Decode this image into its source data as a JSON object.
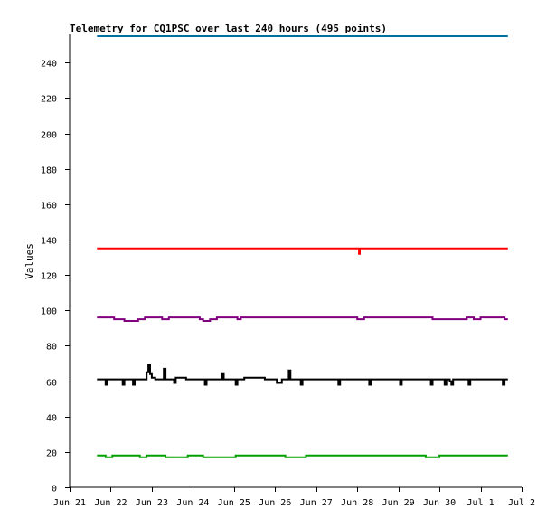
{
  "chart_data": {
    "type": "line",
    "title": "Telemetry for CQ1PSC over last 240 hours (495 points)",
    "xlabel": "",
    "ylabel": "Values",
    "ylim": [
      0,
      256
    ],
    "xlim": [
      "Jun 21",
      "Jul 2"
    ],
    "y_ticks": [
      0,
      20,
      40,
      60,
      80,
      100,
      120,
      140,
      160,
      180,
      200,
      220,
      240
    ],
    "x_ticks": [
      "Jun 21",
      "Jun 22",
      "Jun 23",
      "Jun 24",
      "Jun 25",
      "Jun 26",
      "Jun 27",
      "Jun 28",
      "Jun 29",
      "Jun 30",
      "Jul 1",
      "Jul 2"
    ],
    "legend": "none",
    "grid": false,
    "series": [
      {
        "color": "#0070a0",
        "points": [
          [
            "2024-06-21T16:00",
            255
          ],
          [
            "2024-07-01T16:00",
            255
          ]
        ]
      },
      {
        "color": "#ff0000",
        "points": [
          [
            "2024-06-21T16:00",
            135
          ],
          [
            "2024-06-28T00:30",
            135
          ],
          [
            "2024-06-28T01:00",
            132
          ],
          [
            "2024-06-28T01:30",
            135
          ],
          [
            "2024-07-01T16:00",
            135
          ]
        ]
      },
      {
        "color": "#800080",
        "points": [
          [
            "2024-06-21T16:00",
            96
          ],
          [
            "2024-06-22T00:00",
            96
          ],
          [
            "2024-06-22T02:00",
            95
          ],
          [
            "2024-06-22T06:00",
            95
          ],
          [
            "2024-06-22T08:00",
            94
          ],
          [
            "2024-06-22T16:00",
            95
          ],
          [
            "2024-06-22T20:00",
            96
          ],
          [
            "2024-06-23T00:00",
            96
          ],
          [
            "2024-06-23T06:00",
            95
          ],
          [
            "2024-06-23T10:00",
            96
          ],
          [
            "2024-06-24T00:00",
            96
          ],
          [
            "2024-06-24T04:00",
            95
          ],
          [
            "2024-06-24T06:00",
            94
          ],
          [
            "2024-06-24T10:00",
            95
          ],
          [
            "2024-06-24T14:00",
            96
          ],
          [
            "2024-06-25T00:00",
            96
          ],
          [
            "2024-06-25T02:00",
            95
          ],
          [
            "2024-06-25T04:00",
            96
          ],
          [
            "2024-06-27T00:00",
            96
          ],
          [
            "2024-06-28T00:00",
            95
          ],
          [
            "2024-06-28T04:00",
            96
          ],
          [
            "2024-06-29T00:00",
            96
          ],
          [
            "2024-06-29T18:00",
            96
          ],
          [
            "2024-06-29T20:00",
            95
          ],
          [
            "2024-06-30T12:00",
            95
          ],
          [
            "2024-06-30T16:00",
            96
          ],
          [
            "2024-06-30T20:00",
            95
          ],
          [
            "2024-07-01T00:00",
            96
          ],
          [
            "2024-07-01T12:00",
            96
          ],
          [
            "2024-07-01T14:00",
            95
          ],
          [
            "2024-07-01T16:00",
            95
          ]
        ]
      },
      {
        "color": "#000000",
        "points": [
          [
            "2024-06-21T16:00",
            61
          ],
          [
            "2024-06-21T20:00",
            61
          ],
          [
            "2024-06-21T21:00",
            58
          ],
          [
            "2024-06-21T22:00",
            61
          ],
          [
            "2024-06-22T06:00",
            61
          ],
          [
            "2024-06-22T07:00",
            58
          ],
          [
            "2024-06-22T08:00",
            61
          ],
          [
            "2024-06-22T12:00",
            61
          ],
          [
            "2024-06-22T13:00",
            58
          ],
          [
            "2024-06-22T14:00",
            61
          ],
          [
            "2024-06-22T20:00",
            61
          ],
          [
            "2024-06-22T21:00",
            65
          ],
          [
            "2024-06-22T22:00",
            69
          ],
          [
            "2024-06-22T23:00",
            64
          ],
          [
            "2024-06-23T00:00",
            62
          ],
          [
            "2024-06-23T02:00",
            61
          ],
          [
            "2024-06-23T06:00",
            61
          ],
          [
            "2024-06-23T07:00",
            67
          ],
          [
            "2024-06-23T08:00",
            61
          ],
          [
            "2024-06-23T12:00",
            61
          ],
          [
            "2024-06-23T13:00",
            59
          ],
          [
            "2024-06-23T14:00",
            62
          ],
          [
            "2024-06-23T18:00",
            62
          ],
          [
            "2024-06-23T20:00",
            61
          ],
          [
            "2024-06-24T06:00",
            61
          ],
          [
            "2024-06-24T07:00",
            58
          ],
          [
            "2024-06-24T08:00",
            61
          ],
          [
            "2024-06-24T16:00",
            61
          ],
          [
            "2024-06-24T17:00",
            64
          ],
          [
            "2024-06-24T18:00",
            61
          ],
          [
            "2024-06-25T00:00",
            61
          ],
          [
            "2024-06-25T01:00",
            58
          ],
          [
            "2024-06-25T02:00",
            61
          ],
          [
            "2024-06-25T06:00",
            62
          ],
          [
            "2024-06-25T16:00",
            62
          ],
          [
            "2024-06-25T18:00",
            61
          ],
          [
            "2024-06-26T00:00",
            61
          ],
          [
            "2024-06-26T01:00",
            59
          ],
          [
            "2024-06-26T04:00",
            61
          ],
          [
            "2024-06-26T07:00",
            61
          ],
          [
            "2024-06-26T08:00",
            66
          ],
          [
            "2024-06-26T09:00",
            61
          ],
          [
            "2024-06-26T14:00",
            61
          ],
          [
            "2024-06-26T15:00",
            58
          ],
          [
            "2024-06-26T16:00",
            61
          ],
          [
            "2024-06-27T12:00",
            61
          ],
          [
            "2024-06-27T13:00",
            58
          ],
          [
            "2024-06-27T14:00",
            61
          ],
          [
            "2024-06-28T06:00",
            61
          ],
          [
            "2024-06-28T07:00",
            58
          ],
          [
            "2024-06-28T08:00",
            61
          ],
          [
            "2024-06-29T00:00",
            61
          ],
          [
            "2024-06-29T01:00",
            58
          ],
          [
            "2024-06-29T02:00",
            61
          ],
          [
            "2024-06-29T18:00",
            61
          ],
          [
            "2024-06-29T19:00",
            58
          ],
          [
            "2024-06-29T20:00",
            61
          ],
          [
            "2024-06-30T02:00",
            61
          ],
          [
            "2024-06-30T03:00",
            58
          ],
          [
            "2024-06-30T04:00",
            61
          ],
          [
            "2024-06-30T06:00",
            60
          ],
          [
            "2024-06-30T07:00",
            58
          ],
          [
            "2024-06-30T08:00",
            61
          ],
          [
            "2024-06-30T16:00",
            61
          ],
          [
            "2024-06-30T17:00",
            58
          ],
          [
            "2024-06-30T18:00",
            61
          ],
          [
            "2024-07-01T12:00",
            61
          ],
          [
            "2024-07-01T13:00",
            58
          ],
          [
            "2024-07-01T14:00",
            61
          ],
          [
            "2024-07-01T16:00",
            61
          ]
        ]
      },
      {
        "color": "#00a000",
        "points": [
          [
            "2024-06-21T16:00",
            18
          ],
          [
            "2024-06-21T20:00",
            18
          ],
          [
            "2024-06-21T21:00",
            17
          ],
          [
            "2024-06-22T00:00",
            17
          ],
          [
            "2024-06-22T01:00",
            18
          ],
          [
            "2024-06-22T16:00",
            18
          ],
          [
            "2024-06-22T17:00",
            17
          ],
          [
            "2024-06-22T20:00",
            17
          ],
          [
            "2024-06-22T21:00",
            18
          ],
          [
            "2024-06-23T06:00",
            18
          ],
          [
            "2024-06-23T08:00",
            17
          ],
          [
            "2024-06-23T20:00",
            17
          ],
          [
            "2024-06-23T21:00",
            18
          ],
          [
            "2024-06-24T04:00",
            18
          ],
          [
            "2024-06-24T06:00",
            17
          ],
          [
            "2024-06-25T00:00",
            17
          ],
          [
            "2024-06-25T01:00",
            18
          ],
          [
            "2024-06-26T04:00",
            18
          ],
          [
            "2024-06-26T06:00",
            17
          ],
          [
            "2024-06-26T16:00",
            17
          ],
          [
            "2024-06-26T18:00",
            18
          ],
          [
            "2024-06-29T14:00",
            18
          ],
          [
            "2024-06-29T16:00",
            17
          ],
          [
            "2024-06-29T22:00",
            17
          ],
          [
            "2024-06-30T00:00",
            18
          ],
          [
            "2024-07-01T16:00",
            18
          ]
        ]
      }
    ]
  }
}
